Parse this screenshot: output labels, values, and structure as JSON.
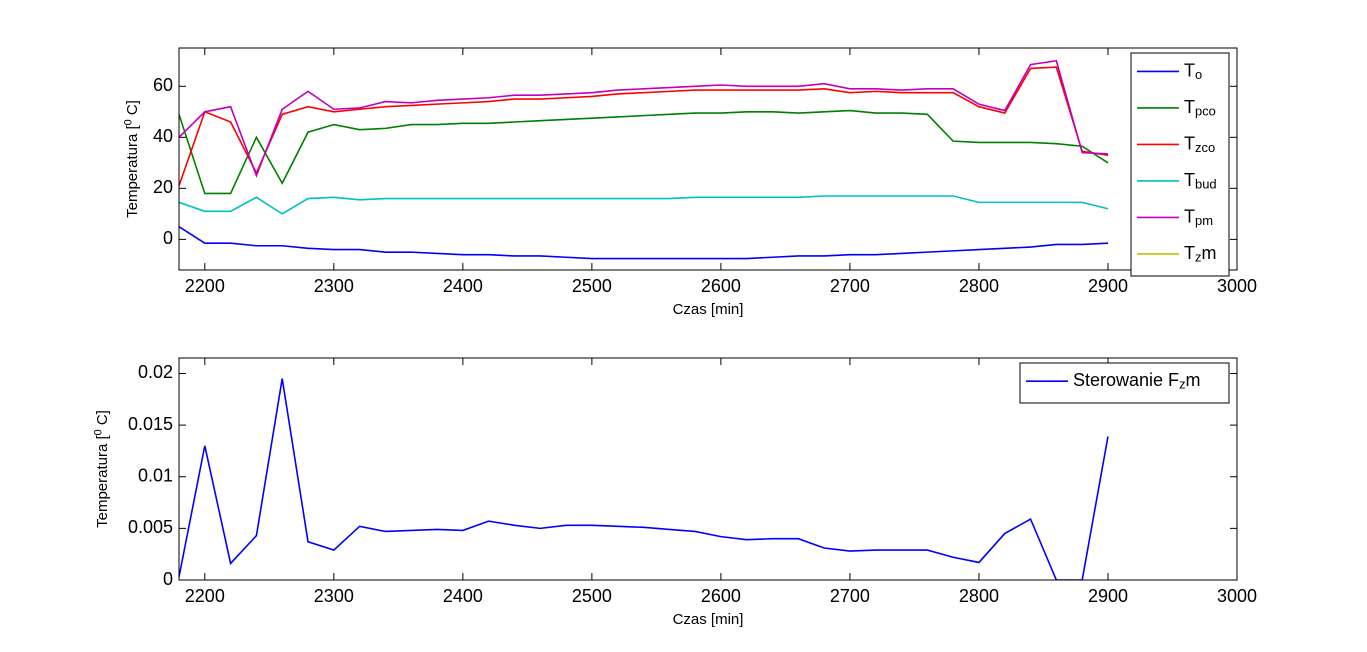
{
  "chart_data": [
    {
      "type": "line",
      "xlabel": "Czas [min]",
      "ylabel": "Temperatura [^0 C]",
      "x": [
        2180,
        2200,
        2220,
        2240,
        2260,
        2280,
        2300,
        2320,
        2340,
        2360,
        2380,
        2400,
        2420,
        2440,
        2460,
        2480,
        2500,
        2520,
        2540,
        2560,
        2580,
        2600,
        2620,
        2640,
        2660,
        2680,
        2700,
        2720,
        2740,
        2760,
        2780,
        2800,
        2820,
        2840,
        2860,
        2880,
        2900
      ],
      "xlim": [
        2180,
        3000
      ],
      "xticks": [
        2200,
        2300,
        2400,
        2500,
        2600,
        2700,
        2800,
        2900,
        3000
      ],
      "ylim": [
        -12,
        75
      ],
      "yticks": [
        0,
        20,
        40,
        60
      ],
      "legend": "northeast",
      "series": [
        {
          "name": "T_o",
          "color": "#0000ff",
          "values": [
            5,
            -1.5,
            -1.5,
            -2.5,
            -2.5,
            -3.5,
            -4,
            -4,
            -5,
            -5,
            -5.5,
            -6,
            -6,
            -6.5,
            -6.5,
            -7,
            -7.5,
            -7.5,
            -7.5,
            -7.5,
            -7.5,
            -7.5,
            -7.5,
            -7,
            -6.5,
            -6.5,
            -6,
            -6,
            -5.5,
            -5,
            -4.5,
            -4,
            -3.5,
            -3,
            -2,
            -2,
            -1.5
          ]
        },
        {
          "name": "T_{pco}",
          "color": "#007f00",
          "values": [
            49,
            18,
            18,
            40,
            22,
            42,
            45,
            43,
            43.5,
            45,
            45,
            45.5,
            45.5,
            46,
            46.5,
            47,
            47.5,
            48,
            48.5,
            49,
            49.5,
            49.5,
            50,
            50,
            49.5,
            50,
            50.5,
            49.5,
            49.5,
            49,
            38.5,
            38,
            38,
            38,
            37.5,
            36.5,
            30
          ]
        },
        {
          "name": "T_{zco}",
          "color": "#ff0000",
          "values": [
            21,
            50,
            46,
            26,
            49,
            52,
            50,
            51,
            52,
            52.5,
            53,
            53.5,
            54,
            55,
            55,
            55.5,
            56,
            57,
            57.5,
            58,
            58.5,
            58.5,
            58.5,
            58.5,
            58.5,
            59,
            57.5,
            58,
            57.5,
            57.5,
            57.5,
            52,
            49.5,
            67,
            67.5,
            34.5,
            33
          ]
        },
        {
          "name": "T_{bud}",
          "color": "#00bfbf",
          "values": [
            14.5,
            11,
            11,
            16.5,
            10,
            16,
            16.5,
            15.5,
            16,
            16,
            16,
            16,
            16,
            16,
            16,
            16,
            16,
            16,
            16,
            16,
            16.5,
            16.5,
            16.5,
            16.5,
            16.5,
            17,
            17,
            17,
            17,
            17,
            17,
            14.5,
            14.5,
            14.5,
            14.5,
            14.5,
            12
          ]
        },
        {
          "name": "T_{pm}",
          "color": "#bf00bf",
          "values": [
            40,
            50,
            52,
            25,
            51,
            58,
            51,
            51.5,
            54,
            53.5,
            54.5,
            55,
            55.5,
            56.5,
            56.5,
            57,
            57.5,
            58.5,
            59,
            59.5,
            60,
            60.5,
            60,
            60,
            60,
            61,
            59,
            59,
            58.5,
            59,
            59,
            53,
            50.5,
            68.5,
            70,
            34,
            33.5
          ]
        },
        {
          "name": "T_zm",
          "color": "#bfbf00",
          "values": [
            null,
            null,
            null,
            null,
            null,
            null,
            null,
            null,
            null,
            null,
            null,
            null,
            null,
            null,
            null,
            null,
            null,
            null,
            null,
            null,
            null,
            null,
            null,
            null,
            null,
            null,
            null,
            null,
            null,
            null,
            null,
            null,
            null,
            null,
            null,
            null,
            null
          ]
        }
      ]
    },
    {
      "type": "line",
      "xlabel": "Czas [min]",
      "ylabel": "Temperatura [^0 C]",
      "x": [
        2180,
        2200,
        2220,
        2240,
        2260,
        2280,
        2300,
        2320,
        2340,
        2360,
        2380,
        2400,
        2420,
        2440,
        2460,
        2480,
        2500,
        2520,
        2540,
        2560,
        2580,
        2600,
        2620,
        2640,
        2660,
        2680,
        2700,
        2720,
        2740,
        2760,
        2780,
        2800,
        2820,
        2840,
        2860,
        2880,
        2900
      ],
      "xlim": [
        2180,
        3000
      ],
      "xticks": [
        2200,
        2300,
        2400,
        2500,
        2600,
        2700,
        2800,
        2900,
        3000
      ],
      "ylim": [
        0,
        0.0215
      ],
      "yticks": [
        0,
        0.005,
        0.01,
        0.015,
        0.02
      ],
      "legend": "northeast",
      "series": [
        {
          "name": "Sterowanie F_zm",
          "color": "#0000ff",
          "values": [
            0.0003,
            0.013,
            0.0016,
            0.0043,
            0.0195,
            0.0037,
            0.0029,
            0.0052,
            0.0047,
            0.0048,
            0.0049,
            0.0048,
            0.0057,
            0.0053,
            0.005,
            0.0053,
            0.0053,
            0.0052,
            0.0051,
            0.0049,
            0.0047,
            0.0042,
            0.0039,
            0.004,
            0.004,
            0.0031,
            0.0028,
            0.0029,
            0.0029,
            0.0029,
            0.0022,
            0.0017,
            0.0045,
            0.0059,
            0,
            0,
            0.0139
          ]
        }
      ]
    }
  ]
}
